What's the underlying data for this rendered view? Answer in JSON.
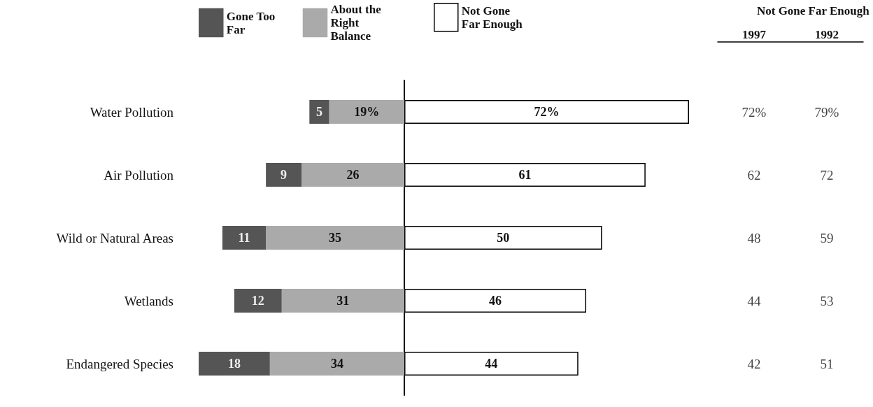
{
  "chart_data": [
    {
      "type": "bar",
      "orientation": "horizontal",
      "stacked": true,
      "categories": [
        "Water Pollution",
        "Air Pollution",
        "Wild or Natural Areas",
        "Wetlands",
        "Endangered Species"
      ],
      "xlim": [
        52,
        0
      ],
      "tick_labels": "y",
      "grid": false,
      "legend": "top",
      "series": [
        {
          "name": "About the Right Balance",
          "color": "#aaaaaa",
          "values": [
            19,
            26,
            35,
            31,
            34
          ],
          "value_labels": [
            "19%",
            "26",
            "35",
            "31",
            "34"
          ]
        },
        {
          "name": "Gone Too Far",
          "color": "#555555",
          "values": [
            5,
            9,
            11,
            12,
            18
          ],
          "value_labels": [
            "5",
            "9",
            "11",
            "12",
            "18"
          ]
        }
      ]
    },
    {
      "type": "bar",
      "orientation": "horizontal",
      "categories": [
        null,
        null,
        null,
        null,
        null
      ],
      "xlim": [
        0,
        72
      ],
      "tick_labels": false,
      "grid": false,
      "legend": "top",
      "series": [
        {
          "name": "Not Gone Far Enough",
          "color": "#ffffff",
          "values": [
            72,
            61,
            50,
            46,
            44
          ],
          "value_labels": [
            "72%",
            "61",
            "50",
            "46",
            "44"
          ]
        }
      ]
    },
    {
      "type": "other",
      "title": "Not Gone Far Enough",
      "categories": [
        "1997",
        "1992"
      ],
      "cell_labels": [
        [
          "72%",
          "79%"
        ],
        [
          "62",
          "72"
        ],
        [
          "48",
          "59"
        ],
        [
          "44",
          "53"
        ],
        [
          "42",
          "51"
        ]
      ]
    }
  ]
}
